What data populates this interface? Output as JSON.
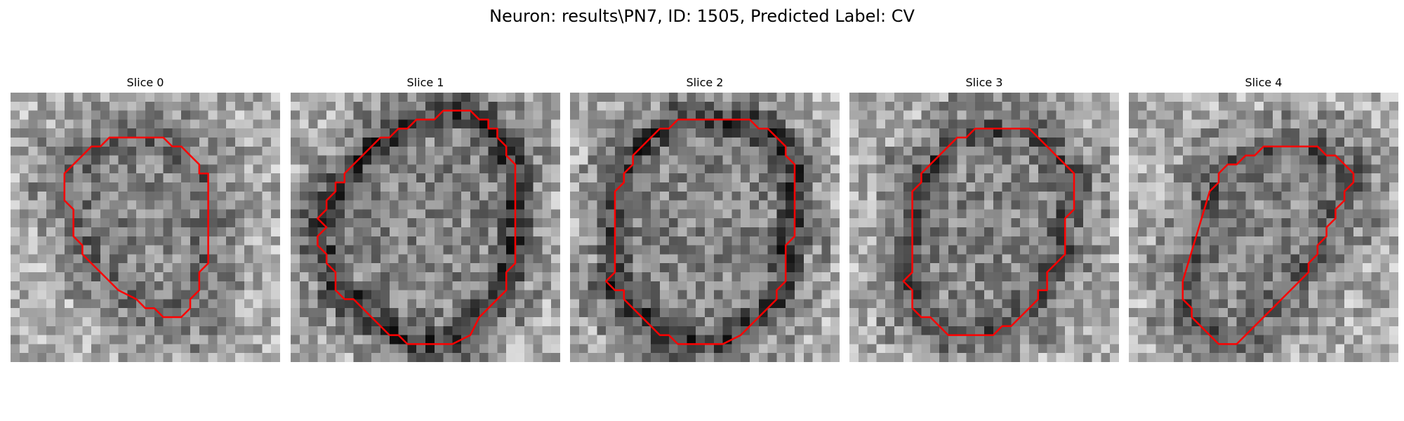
{
  "figure": {
    "title": "Neuron: results\\PN7, ID: 1505, Predicted Label: CV"
  },
  "panels": [
    {
      "title": "Slice 0",
      "seed": 11,
      "dark_ring": 0.35,
      "contour": [
        [
          14,
          5
        ],
        [
          17,
          5
        ],
        [
          18,
          6
        ],
        [
          19,
          6
        ],
        [
          20,
          7
        ],
        [
          21,
          8
        ],
        [
          21,
          9
        ],
        [
          22,
          9
        ],
        [
          22,
          19
        ],
        [
          21,
          20
        ],
        [
          21,
          22
        ],
        [
          20,
          23
        ],
        [
          20,
          24
        ],
        [
          19,
          25
        ],
        [
          17,
          25
        ],
        [
          16,
          24
        ],
        [
          15,
          24
        ],
        [
          14,
          23
        ],
        [
          12,
          22
        ],
        [
          11,
          21
        ],
        [
          10,
          20
        ],
        [
          9,
          19
        ],
        [
          8,
          18
        ],
        [
          8,
          17
        ],
        [
          7,
          16
        ],
        [
          7,
          13
        ],
        [
          6,
          12
        ],
        [
          6,
          9
        ],
        [
          7,
          8
        ],
        [
          8,
          7
        ],
        [
          9,
          6
        ],
        [
          10,
          6
        ],
        [
          11,
          5
        ],
        [
          12,
          5
        ],
        [
          13,
          5
        ]
      ]
    },
    {
      "title": "Slice 1",
      "seed": 23,
      "dark_ring": 0.8,
      "contour": [
        [
          17,
          2
        ],
        [
          20,
          2
        ],
        [
          21,
          3
        ],
        [
          22,
          3
        ],
        [
          22,
          4
        ],
        [
          23,
          4
        ],
        [
          23,
          5
        ],
        [
          24,
          6
        ],
        [
          24,
          7
        ],
        [
          25,
          8
        ],
        [
          25,
          19
        ],
        [
          24,
          20
        ],
        [
          24,
          22
        ],
        [
          23,
          23
        ],
        [
          22,
          24
        ],
        [
          21,
          25
        ],
        [
          20,
          27
        ],
        [
          18,
          28
        ],
        [
          13,
          28
        ],
        [
          12,
          27
        ],
        [
          11,
          27
        ],
        [
          10,
          26
        ],
        [
          9,
          25
        ],
        [
          8,
          24
        ],
        [
          7,
          23
        ],
        [
          6,
          23
        ],
        [
          5,
          22
        ],
        [
          5,
          20
        ],
        [
          4,
          19
        ],
        [
          4,
          18
        ],
        [
          3,
          17
        ],
        [
          3,
          16
        ],
        [
          4,
          15
        ],
        [
          3,
          14
        ],
        [
          4,
          13
        ],
        [
          4,
          12
        ],
        [
          5,
          11
        ],
        [
          5,
          10
        ],
        [
          6,
          10
        ],
        [
          6,
          9
        ],
        [
          7,
          8
        ],
        [
          8,
          7
        ],
        [
          9,
          6
        ],
        [
          10,
          5
        ],
        [
          11,
          5
        ],
        [
          12,
          4
        ],
        [
          13,
          4
        ],
        [
          14,
          3
        ],
        [
          16,
          3
        ],
        [
          17,
          2
        ]
      ]
    },
    {
      "title": "Slice 2",
      "seed": 37,
      "dark_ring": 0.8,
      "contour": [
        [
          12,
          3
        ],
        [
          20,
          3
        ],
        [
          21,
          4
        ],
        [
          22,
          4
        ],
        [
          23,
          5
        ],
        [
          24,
          6
        ],
        [
          24,
          7
        ],
        [
          25,
          8
        ],
        [
          25,
          16
        ],
        [
          24,
          17
        ],
        [
          24,
          21
        ],
        [
          23,
          22
        ],
        [
          23,
          23
        ],
        [
          22,
          24
        ],
        [
          21,
          25
        ],
        [
          20,
          26
        ],
        [
          19,
          27
        ],
        [
          17,
          28
        ],
        [
          12,
          28
        ],
        [
          11,
          27
        ],
        [
          10,
          27
        ],
        [
          9,
          26
        ],
        [
          8,
          25
        ],
        [
          7,
          24
        ],
        [
          6,
          23
        ],
        [
          6,
          22
        ],
        [
          5,
          22
        ],
        [
          4,
          21
        ],
        [
          5,
          20
        ],
        [
          5,
          12
        ],
        [
          5,
          11
        ],
        [
          6,
          10
        ],
        [
          6,
          9
        ],
        [
          7,
          8
        ],
        [
          7,
          7
        ],
        [
          8,
          6
        ],
        [
          9,
          5
        ],
        [
          10,
          4
        ],
        [
          11,
          4
        ],
        [
          12,
          3
        ]
      ]
    },
    {
      "title": "Slice 3",
      "seed": 53,
      "dark_ring": 0.55,
      "contour": [
        [
          14,
          4
        ],
        [
          20,
          4
        ],
        [
          21,
          5
        ],
        [
          22,
          6
        ],
        [
          23,
          7
        ],
        [
          24,
          8
        ],
        [
          25,
          9
        ],
        [
          25,
          13
        ],
        [
          24,
          14
        ],
        [
          24,
          18
        ],
        [
          23,
          19
        ],
        [
          22,
          20
        ],
        [
          22,
          22
        ],
        [
          21,
          22
        ],
        [
          21,
          23
        ],
        [
          20,
          24
        ],
        [
          19,
          25
        ],
        [
          18,
          26
        ],
        [
          17,
          26
        ],
        [
          16,
          27
        ],
        [
          11,
          27
        ],
        [
          10,
          26
        ],
        [
          9,
          25
        ],
        [
          8,
          25
        ],
        [
          7,
          24
        ],
        [
          7,
          22
        ],
        [
          6,
          21
        ],
        [
          7,
          20
        ],
        [
          7,
          12
        ],
        [
          7,
          11
        ],
        [
          8,
          10
        ],
        [
          8,
          9
        ],
        [
          9,
          8
        ],
        [
          10,
          7
        ],
        [
          11,
          6
        ],
        [
          12,
          5
        ],
        [
          13,
          5
        ],
        [
          14,
          4
        ]
      ]
    },
    {
      "title": "Slice 4",
      "seed": 71,
      "dark_ring": 0.45,
      "contour": [
        [
          15,
          6
        ],
        [
          21,
          6
        ],
        [
          22,
          7
        ],
        [
          23,
          7
        ],
        [
          24,
          8
        ],
        [
          25,
          9
        ],
        [
          25,
          10
        ],
        [
          24,
          11
        ],
        [
          24,
          12
        ],
        [
          23,
          13
        ],
        [
          23,
          14
        ],
        [
          22,
          15
        ],
        [
          22,
          16
        ],
        [
          21,
          17
        ],
        [
          21,
          18
        ],
        [
          20,
          19
        ],
        [
          20,
          20
        ],
        [
          19,
          21
        ],
        [
          18,
          22
        ],
        [
          17,
          23
        ],
        [
          16,
          24
        ],
        [
          15,
          25
        ],
        [
          14,
          26
        ],
        [
          13,
          27
        ],
        [
          12,
          28
        ],
        [
          10,
          28
        ],
        [
          9,
          27
        ],
        [
          8,
          26
        ],
        [
          7,
          25
        ],
        [
          7,
          24
        ],
        [
          6,
          23
        ],
        [
          6,
          21
        ],
        [
          9,
          11
        ],
        [
          10,
          10
        ],
        [
          10,
          9
        ],
        [
          11,
          8
        ],
        [
          12,
          8
        ],
        [
          13,
          7
        ],
        [
          14,
          7
        ],
        [
          15,
          6
        ]
      ]
    }
  ]
}
